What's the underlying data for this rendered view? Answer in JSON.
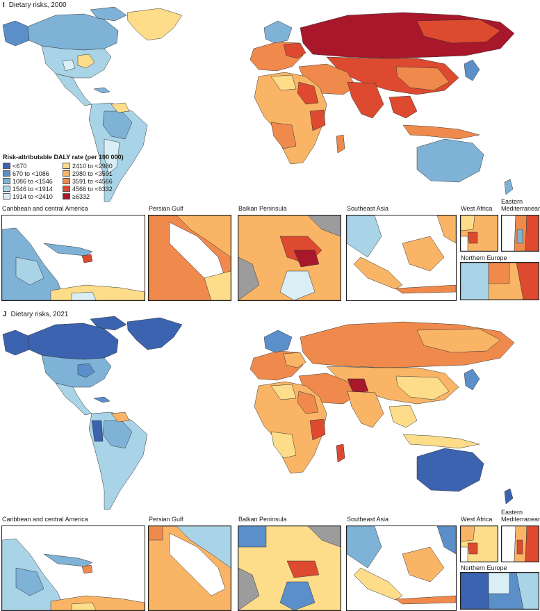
{
  "colors": {
    "c1": "#3b63b0",
    "c2": "#5b8fc9",
    "c3": "#7eb2d6",
    "c4": "#a9d3e6",
    "c5": "#d9eef5",
    "c6": "#fddc8a",
    "c7": "#f9b466",
    "c8": "#f08a4c",
    "c9": "#dd4a2f",
    "c10": "#a8172a",
    "nodata": "#9c9c9c",
    "border": "#222222"
  },
  "legend": {
    "title": "Risk-attributable DALY rate (per 100 000)",
    "items": [
      {
        "label": "<670",
        "color": "#3b63b0"
      },
      {
        "label": "670 to <1086",
        "color": "#5b8fc9"
      },
      {
        "label": "1086 to <1546",
        "color": "#7eb2d6"
      },
      {
        "label": "1546 to <1914",
        "color": "#a9d3e6"
      },
      {
        "label": "1914 to <2410",
        "color": "#d9eef5"
      },
      {
        "label": "2410 to <2980",
        "color": "#fddc8a"
      },
      {
        "label": "2980 to <3591",
        "color": "#f9b466"
      },
      {
        "label": "3591 to <4566",
        "color": "#f08a4c"
      },
      {
        "label": "4566 to <6332",
        "color": "#dd4a2f"
      },
      {
        "label": "≥6332",
        "color": "#a8172a"
      }
    ]
  },
  "panels": [
    {
      "letter": "I",
      "title": "Dietary risks, 2000",
      "insets": {
        "caribbean": "Caribbean and central America",
        "persian_gulf": "Persian Gulf",
        "balkan": "Balkan Peninsula",
        "se_asia": "Southeast Asia",
        "west_africa": "West Africa",
        "east_med_line1": "Eastern",
        "east_med_line2": "Mediterranean",
        "n_europe": "Northern Europe"
      }
    },
    {
      "letter": "J",
      "title": "Dietary risks, 2021",
      "insets": {
        "caribbean": "Caribbean and central America",
        "persian_gulf": "Persian Gulf",
        "balkan": "Balkan Peninsula",
        "se_asia": "Southeast Asia",
        "west_africa": "West Africa",
        "east_med_line1": "Eastern",
        "east_med_line2": "Mediterranean",
        "n_europe": "Northern Europe"
      }
    }
  ]
}
